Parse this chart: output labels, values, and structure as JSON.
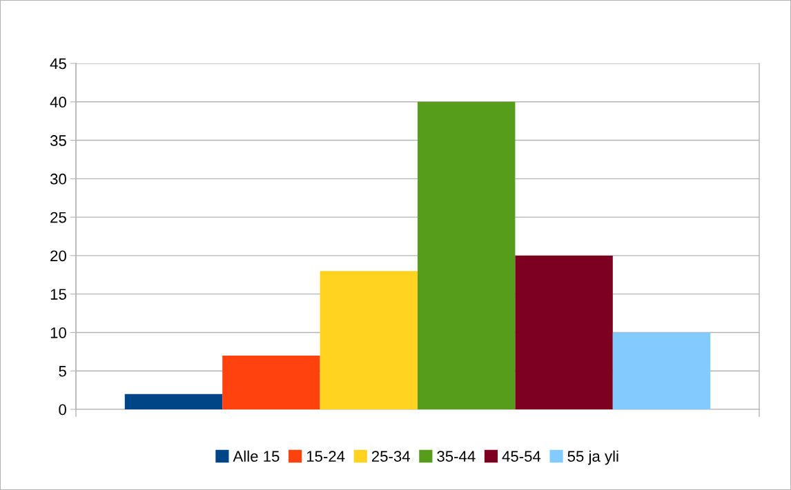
{
  "chart_data": {
    "type": "bar",
    "categories": [
      null
    ],
    "series": [
      {
        "name": "Alle 15",
        "color": "#004586",
        "values": [
          2
        ]
      },
      {
        "name": "15-24",
        "color": "#ff420e",
        "values": [
          7
        ]
      },
      {
        "name": "25-34",
        "color": "#ffd320",
        "values": [
          18
        ]
      },
      {
        "name": "35-44",
        "color": "#579d1c",
        "values": [
          40
        ]
      },
      {
        "name": "45-54",
        "color": "#7e0021",
        "values": [
          20
        ]
      },
      {
        "name": "55 ja yli",
        "color": "#83caff",
        "values": [
          10
        ]
      }
    ],
    "ylim": [
      0,
      45
    ],
    "yticks": [
      0,
      5,
      10,
      15,
      20,
      25,
      30,
      35,
      40,
      45
    ],
    "grid": "y",
    "legend": "bottom"
  }
}
